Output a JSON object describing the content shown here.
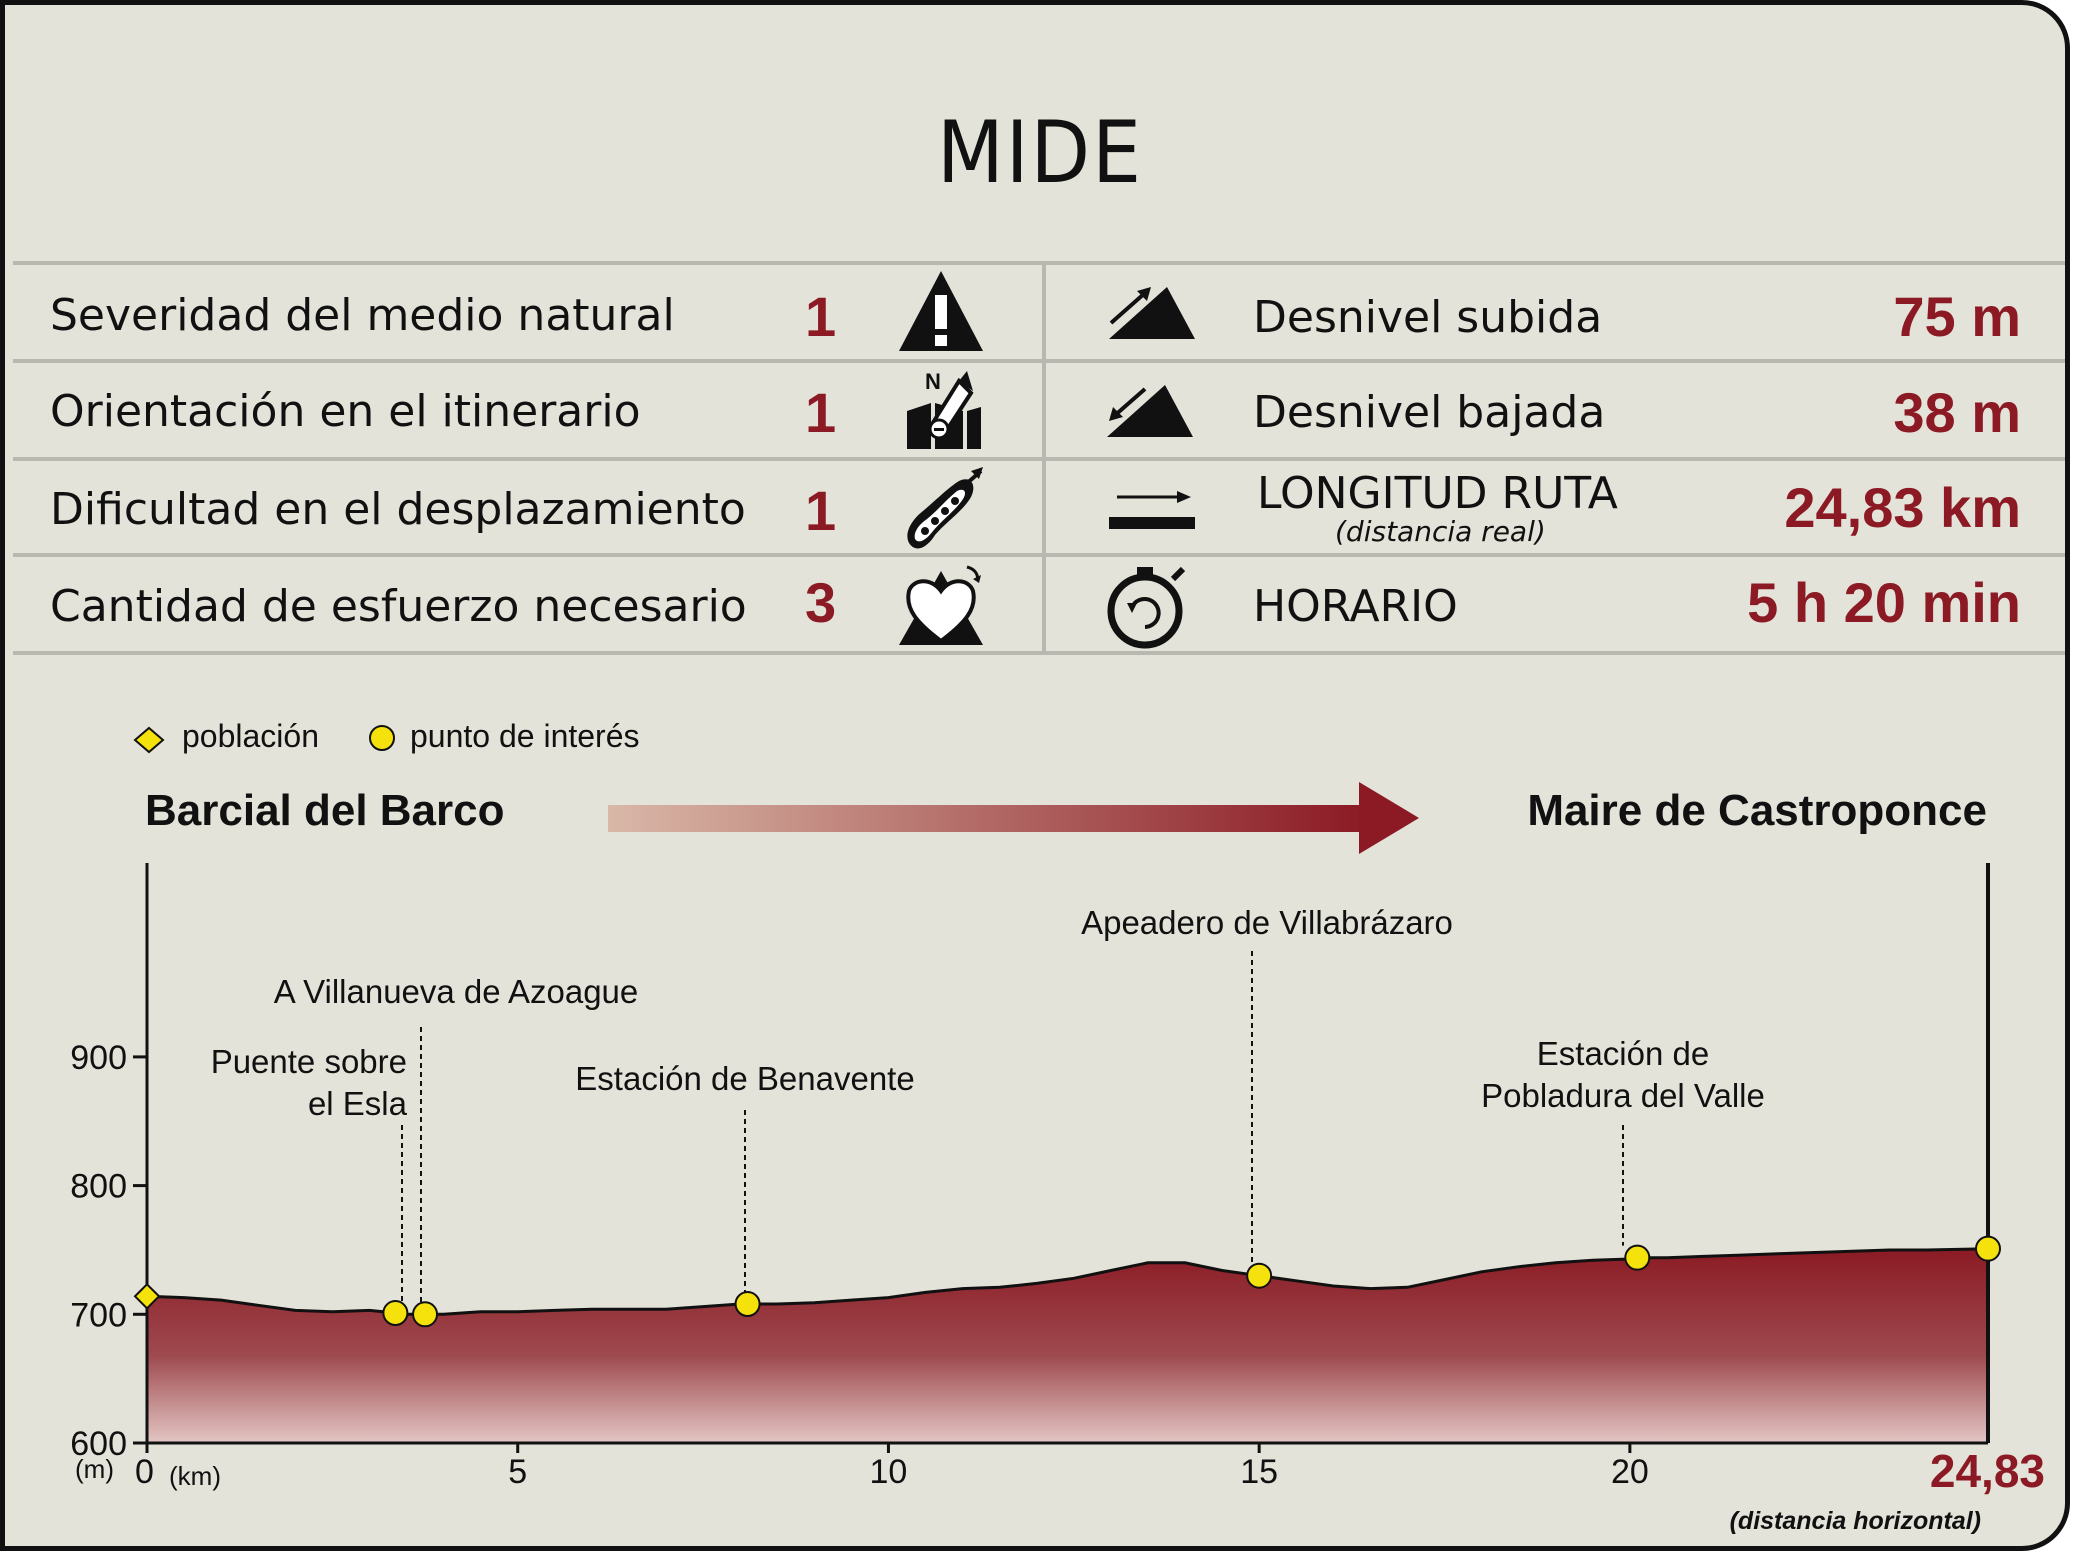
{
  "title": "MIDE",
  "mide_rows": [
    {
      "label": "Severidad del medio natural",
      "value": "1"
    },
    {
      "label": "Orientación en el itinerario",
      "value": "1"
    },
    {
      "label": "Dificultad en el desplazamiento",
      "value": "1"
    },
    {
      "label": "Cantidad de esfuerzo necesario",
      "value": "3"
    }
  ],
  "route_rows": [
    {
      "label": "Desnivel subida",
      "value": "75 m"
    },
    {
      "label": "Desnivel bajada",
      "value": "38 m"
    },
    {
      "label": "LONGITUD RUTA",
      "sublabel": "(distancia real)",
      "value": "24,83 km"
    },
    {
      "label": "HORARIO",
      "value": "5 h 20 min"
    }
  ],
  "icons": [
    "warning-icon",
    "compass-map-icon",
    "footprint-icon",
    "heart-effort-icon",
    "ascent-icon",
    "descent-icon",
    "distance-arrow-icon",
    "stopwatch-icon"
  ],
  "colors": {
    "accent": "#8b1a24",
    "marker": "#f5e20c",
    "background": "#e3e3d9"
  },
  "legend": {
    "town": "población",
    "poi": "punto de interés"
  },
  "route": {
    "start": "Barcial del Barco",
    "end": "Maire de Castroponce"
  },
  "chart_data": {
    "type": "area",
    "ylabel_unit": "(m)",
    "xlabel_unit": "(km)",
    "ylim": [
      600,
      1000
    ],
    "xlim": [
      0,
      24.83
    ],
    "yticks": [
      600,
      700,
      800,
      900
    ],
    "ytick_labels": [
      "600",
      "700",
      "800",
      "900"
    ],
    "xticks": [
      0,
      5,
      10,
      15,
      20
    ],
    "xtick_labels": [
      "0",
      "5",
      "10",
      "15",
      "20"
    ],
    "x_end_label": "24,83",
    "x_note": "(distancia horizontal)",
    "profile": {
      "x": [
        0,
        0.5,
        1,
        1.5,
        2,
        2.5,
        3,
        3.35,
        3.5,
        3.75,
        4,
        4.5,
        5,
        5.5,
        6,
        6.5,
        7,
        7.5,
        8,
        8.1,
        8.5,
        9,
        9.5,
        10,
        10.5,
        11,
        11.5,
        12,
        12.5,
        13,
        13.5,
        14,
        14.5,
        15,
        15.5,
        16,
        16.5,
        17,
        17.5,
        18,
        18.5,
        19,
        19.5,
        20,
        20.1,
        20.5,
        21,
        21.5,
        22,
        22.5,
        23,
        23.5,
        24,
        24.83
      ],
      "y": [
        714,
        713,
        711,
        707,
        703,
        702,
        703,
        701,
        700,
        700,
        700,
        702,
        702,
        703,
        704,
        704,
        704,
        706,
        708,
        708,
        708,
        709,
        711,
        713,
        717,
        720,
        721,
        724,
        728,
        734,
        740,
        740,
        734,
        730,
        726,
        722,
        720,
        721,
        727,
        733,
        737,
        740,
        742,
        743,
        744,
        744,
        745,
        746,
        747,
        748,
        749,
        750,
        750,
        751
      ]
    },
    "towns": [
      {
        "x": 0,
        "y": 714
      }
    ],
    "points_of_interest": [
      {
        "x": 3.35,
        "y": 701,
        "label": [
          "Puente sobre",
          "el Esla"
        ]
      },
      {
        "x": 3.75,
        "y": 700,
        "label": [
          "A Villanueva de Azoague"
        ]
      },
      {
        "x": 8.1,
        "y": 708,
        "label": [
          "Estación de Benavente"
        ]
      },
      {
        "x": 15.0,
        "y": 730,
        "label": [
          "Apeadero de Villabrázaro"
        ]
      },
      {
        "x": 20.1,
        "y": 744,
        "label": [
          "Estación de",
          "Pobladura del Valle"
        ]
      },
      {
        "x": 24.83,
        "y": 751,
        "label": []
      }
    ]
  }
}
